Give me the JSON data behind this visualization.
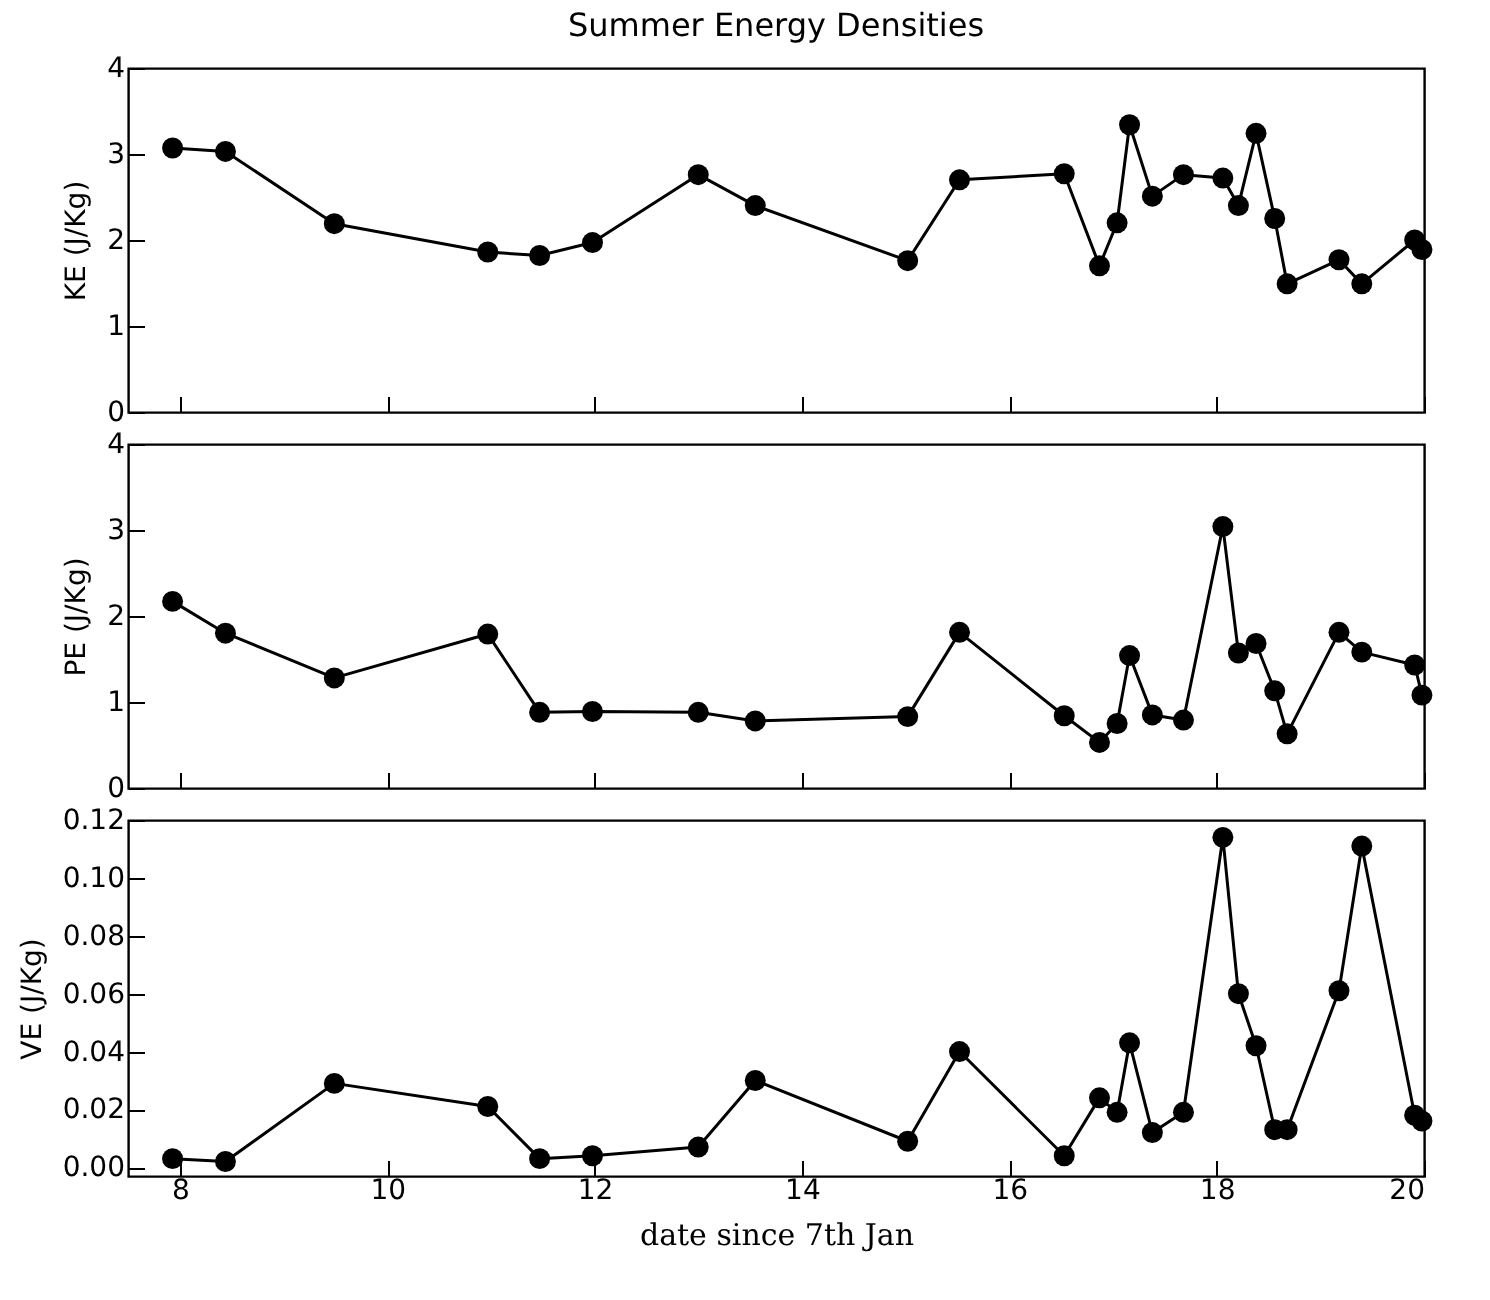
{
  "chart_data": [
    {
      "type": "line",
      "title": "Summer Energy Densities",
      "ylabel": "KE (J/Kg)",
      "x": [
        7.93,
        8.44,
        9.49,
        10.97,
        11.47,
        11.98,
        13.0,
        13.55,
        15.02,
        15.52,
        16.53,
        16.87,
        17.04,
        17.16,
        17.38,
        17.68,
        18.06,
        18.21,
        18.38,
        18.56,
        18.68,
        19.18,
        19.4,
        19.91,
        19.98
      ],
      "xlim": [
        7.5,
        20
      ],
      "xticks": [
        8,
        10,
        12,
        14,
        16,
        18,
        20
      ],
      "ylim": [
        0,
        4
      ],
      "yticks": [
        0,
        1,
        2,
        3,
        4
      ],
      "tick_labels": "y",
      "marker": "circle",
      "line_style": "solid",
      "series": [
        {
          "color": "#000000",
          "values": [
            3.07,
            3.03,
            2.19,
            1.86,
            1.82,
            1.97,
            2.76,
            2.4,
            1.76,
            2.7,
            2.77,
            1.7,
            2.2,
            3.34,
            2.51,
            2.76,
            2.72,
            2.4,
            3.24,
            2.25,
            1.49,
            1.77,
            1.49,
            2.0,
            1.89
          ]
        }
      ]
    },
    {
      "type": "line",
      "ylabel": "PE (J/Kg)",
      "x": [
        7.93,
        8.44,
        9.49,
        10.97,
        11.47,
        11.98,
        13.0,
        13.55,
        15.02,
        15.52,
        16.53,
        16.87,
        17.04,
        17.16,
        17.38,
        17.68,
        18.06,
        18.21,
        18.38,
        18.56,
        18.68,
        19.18,
        19.4,
        19.91,
        19.98
      ],
      "xlim": [
        7.5,
        20
      ],
      "xticks": [
        8,
        10,
        12,
        14,
        16,
        18,
        20
      ],
      "ylim": [
        0,
        4
      ],
      "yticks": [
        0,
        1,
        2,
        3,
        4
      ],
      "tick_labels": "y",
      "marker": "circle",
      "line_style": "solid",
      "series": [
        {
          "color": "#000000",
          "values": [
            2.17,
            1.8,
            1.28,
            1.79,
            0.88,
            0.89,
            0.88,
            0.78,
            0.83,
            1.81,
            0.84,
            0.53,
            0.75,
            1.54,
            0.85,
            0.79,
            3.04,
            1.57,
            1.68,
            1.13,
            0.63,
            1.81,
            1.58,
            1.43,
            1.08
          ]
        }
      ]
    },
    {
      "type": "line",
      "ylabel": "VE (J/Kg)",
      "xlabel": "date since 7th Jan",
      "x": [
        7.93,
        8.44,
        9.49,
        10.97,
        11.47,
        11.98,
        13.0,
        13.55,
        15.02,
        15.52,
        16.53,
        16.87,
        17.04,
        17.16,
        17.38,
        17.68,
        18.06,
        18.21,
        18.38,
        18.56,
        18.68,
        19.18,
        19.4,
        19.91,
        19.98
      ],
      "xlim": [
        7.5,
        20
      ],
      "xticks": [
        8,
        10,
        12,
        14,
        16,
        18,
        20
      ],
      "ylim": [
        -0.003,
        0.12
      ],
      "yticks": [
        {
          "value": 0,
          "label": "0.00"
        },
        {
          "value": 0.02,
          "label": "0.02"
        },
        {
          "value": 0.04,
          "label": "0.04"
        },
        {
          "value": 0.06,
          "label": "0.06"
        },
        {
          "value": 0.08,
          "label": "0.08"
        },
        {
          "value": 0.1,
          "label": "0.10"
        },
        {
          "value": 0.12,
          "label": "0.12"
        }
      ],
      "marker": "circle",
      "line_style": "solid",
      "series": [
        {
          "color": "#000000",
          "values": [
            0.003,
            0.002,
            0.029,
            0.021,
            0.003,
            0.004,
            0.007,
            0.03,
            0.009,
            0.04,
            0.004,
            0.024,
            0.019,
            0.043,
            0.012,
            0.019,
            0.114,
            0.06,
            0.042,
            0.013,
            0.013,
            0.061,
            0.111,
            0.018,
            0.016
          ]
        }
      ]
    }
  ]
}
